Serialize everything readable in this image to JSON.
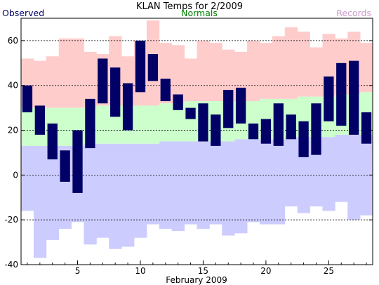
{
  "chart_data": {
    "type": "bar",
    "title": "KLAN Temps for 2/2009",
    "xlabel": "February 2009",
    "ylabel": "",
    "ylim": [
      -40,
      70
    ],
    "xlim": [
      0.5,
      28.5
    ],
    "yticks": [
      -40,
      -20,
      0,
      20,
      40,
      60
    ],
    "xticks": [
      5,
      10,
      15,
      20,
      25
    ],
    "grid": "horizontal dashed at y ticks",
    "legend": [
      {
        "name": "Observed",
        "color": "#000066",
        "placement": "top-left"
      },
      {
        "name": "Normals",
        "color": "#008000",
        "placement": "top-center"
      },
      {
        "name": "Records",
        "color": "#cc99cc",
        "placement": "top-right"
      }
    ],
    "colors": {
      "observed": "#000066",
      "normals": "#ccffcc",
      "records_high": "#ffcccc",
      "records_low": "#ccccff"
    },
    "days": [
      1,
      2,
      3,
      4,
      5,
      6,
      7,
      8,
      9,
      10,
      11,
      12,
      13,
      14,
      15,
      16,
      17,
      18,
      19,
      20,
      21,
      22,
      23,
      24,
      25,
      26,
      27,
      28
    ],
    "series": [
      {
        "name": "Observed",
        "role": "observed",
        "high": [
          40,
          31,
          23,
          11,
          20,
          34,
          52,
          48,
          41,
          60,
          54,
          43,
          36,
          30,
          32,
          27,
          38,
          39,
          23,
          25,
          32,
          27,
          24,
          32,
          44,
          50,
          51,
          28
        ],
        "low": [
          28,
          18,
          7,
          -3,
          -8,
          12,
          32,
          26,
          20,
          37,
          42,
          33,
          29,
          25,
          15,
          13,
          21,
          23,
          16,
          14,
          13,
          16,
          8,
          9,
          24,
          22,
          18,
          14
        ]
      },
      {
        "name": "Normals",
        "role": "normals",
        "high": [
          30,
          30,
          30,
          30,
          30,
          30,
          31,
          31,
          31,
          31,
          31,
          32,
          32,
          33,
          33,
          33,
          33,
          33,
          33,
          34,
          34,
          34,
          35,
          35,
          35,
          36,
          36,
          37
        ],
        "low": [
          13,
          13,
          13,
          13,
          13,
          14,
          14,
          14,
          14,
          14,
          14,
          15,
          15,
          15,
          15,
          15,
          15,
          16,
          16,
          16,
          16,
          17,
          17,
          17,
          17,
          18,
          18,
          18
        ]
      },
      {
        "name": "Records",
        "role": "records",
        "high": [
          52,
          51,
          53,
          61,
          61,
          55,
          54,
          62,
          53,
          60,
          69,
          59,
          58,
          52,
          60,
          59,
          56,
          55,
          60,
          59,
          62,
          66,
          64,
          57,
          63,
          61,
          64,
          59
        ],
        "low": [
          -16,
          -37,
          -29,
          -24,
          -21,
          -31,
          -28,
          -33,
          -32,
          -28,
          -22,
          -24,
          -25,
          -22,
          -24,
          -22,
          -27,
          -26,
          -21,
          -22,
          -22,
          -14,
          -17,
          -14,
          -16,
          -12,
          -20,
          -18
        ]
      }
    ]
  }
}
